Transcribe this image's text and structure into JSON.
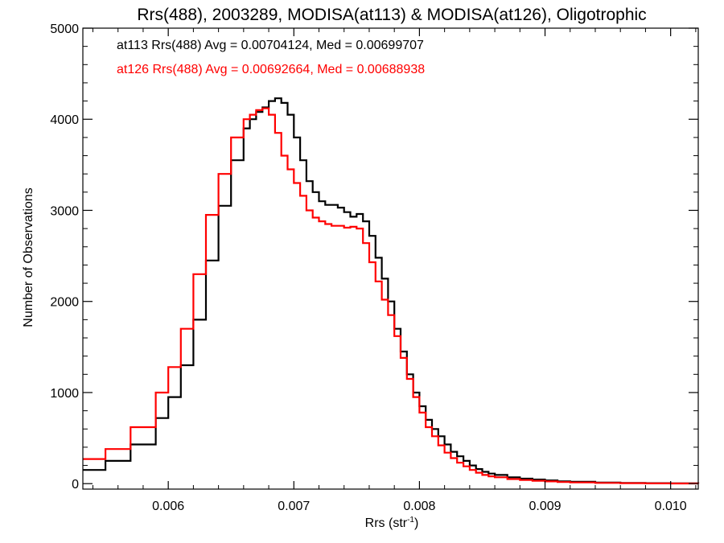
{
  "chart_data": {
    "type": "line",
    "title": "Rrs(488), 2003289, MODISA(at113) & MODISA(at126), Oligotrophic",
    "xlabel_main": "Rrs (str",
    "xlabel_sup": "-1",
    "xlabel_tail": ")",
    "ylabel": "Number of Observations",
    "xlim": [
      0.00532,
      0.01022
    ],
    "ylim": [
      -60,
      5000
    ],
    "x_ticks": [
      0.006,
      0.007,
      0.008,
      0.009,
      0.01
    ],
    "x_tick_labels": [
      "0.006",
      "0.007",
      "0.008",
      "0.009",
      "0.010"
    ],
    "y_ticks": [
      0,
      1000,
      2000,
      3000,
      4000,
      5000
    ],
    "y_tick_labels": [
      "0",
      "1000",
      "2000",
      "3000",
      "4000",
      "5000"
    ],
    "legend_placement": "top-left",
    "grid": false,
    "series": [
      {
        "name": "at113 Rrs(488) Avg = 0.00704124, Med = 0.00699707",
        "color": "#000000",
        "x": [
          0.00532,
          0.0055,
          0.0057,
          0.0059,
          0.006,
          0.0061,
          0.0062,
          0.0063,
          0.0064,
          0.0065,
          0.0066,
          0.00665,
          0.0067,
          0.00675,
          0.0068,
          0.00685,
          0.0069,
          0.00695,
          0.007,
          0.00705,
          0.0071,
          0.00715,
          0.0072,
          0.00725,
          0.0073,
          0.00735,
          0.0074,
          0.00745,
          0.0075,
          0.00755,
          0.0076,
          0.00765,
          0.0077,
          0.00775,
          0.0078,
          0.00785,
          0.0079,
          0.00795,
          0.008,
          0.00805,
          0.0081,
          0.00815,
          0.0082,
          0.00825,
          0.0083,
          0.00835,
          0.0084,
          0.00845,
          0.0085,
          0.00855,
          0.0086,
          0.0087,
          0.0088,
          0.0089,
          0.009,
          0.0091,
          0.0092,
          0.0094,
          0.0096,
          0.0098,
          0.01,
          0.01022
        ],
        "y": [
          150,
          250,
          430,
          720,
          950,
          1300,
          1800,
          2450,
          3050,
          3550,
          3900,
          4000,
          4080,
          4130,
          4200,
          4230,
          4180,
          4050,
          3800,
          3550,
          3320,
          3200,
          3100,
          3060,
          3060,
          3030,
          2980,
          2930,
          2960,
          2880,
          2720,
          2480,
          2250,
          2000,
          1700,
          1450,
          1200,
          1000,
          850,
          700,
          600,
          520,
          430,
          350,
          300,
          250,
          200,
          160,
          130,
          110,
          95,
          70,
          55,
          45,
          35,
          25,
          20,
          12,
          8,
          5,
          3,
          2
        ]
      },
      {
        "name": "at126 Rrs(488) Avg = 0.00692664, Med = 0.00688938",
        "color": "#ff0000",
        "x": [
          0.00532,
          0.0055,
          0.0057,
          0.0059,
          0.006,
          0.0061,
          0.0062,
          0.0063,
          0.0064,
          0.0065,
          0.0066,
          0.00665,
          0.0067,
          0.00675,
          0.0068,
          0.00685,
          0.0069,
          0.00695,
          0.007,
          0.00705,
          0.0071,
          0.00715,
          0.0072,
          0.00725,
          0.0073,
          0.00735,
          0.0074,
          0.00745,
          0.0075,
          0.00755,
          0.0076,
          0.00765,
          0.0077,
          0.00775,
          0.0078,
          0.00785,
          0.0079,
          0.00795,
          0.008,
          0.00805,
          0.0081,
          0.00815,
          0.0082,
          0.00825,
          0.0083,
          0.00835,
          0.0084,
          0.00845,
          0.0085,
          0.00855,
          0.0086,
          0.0087,
          0.0088,
          0.0089,
          0.009,
          0.0091,
          0.0092,
          0.0094,
          0.0096,
          0.0098,
          0.01,
          0.01022
        ],
        "y": [
          270,
          380,
          620,
          1000,
          1280,
          1700,
          2300,
          2950,
          3400,
          3800,
          4000,
          4050,
          4100,
          4120,
          4050,
          3850,
          3600,
          3450,
          3300,
          3160,
          3000,
          2920,
          2880,
          2850,
          2830,
          2830,
          2810,
          2820,
          2800,
          2640,
          2430,
          2220,
          2020,
          1850,
          1620,
          1380,
          1150,
          950,
          780,
          620,
          520,
          420,
          340,
          280,
          230,
          190,
          150,
          120,
          95,
          80,
          70,
          50,
          40,
          32,
          25,
          18,
          13,
          8,
          5,
          3,
          2,
          1
        ]
      }
    ]
  }
}
